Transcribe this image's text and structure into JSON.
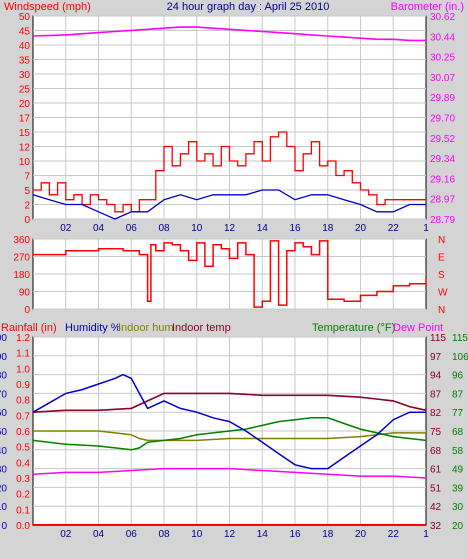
{
  "title": "24 hour graph day : April 25 2010",
  "colors": {
    "background": "#d4d4d4",
    "plot_bg": "#ffffff",
    "grid": "#c8c8c8",
    "windspeed": "#ff0000",
    "gust": "#ff0000",
    "avg_wind": "#0000cc",
    "barometer": "#ff00ff",
    "direction": "#ff0000",
    "humidity": "#0000cc",
    "indoor_hum": "#808000",
    "indoor_temp": "#8b0026",
    "temperature": "#008000",
    "dew_point": "#ff00ff",
    "rainfall": "#ff0000"
  },
  "chart_data": [
    {
      "type": "line",
      "name": "wind-barometer",
      "left_label": "Windspeed (mph)",
      "right_label": "Barometer (in.)",
      "x_ticks": [
        "02",
        "04",
        "06",
        "08",
        "10",
        "12",
        "14",
        "16",
        "18",
        "20",
        "22"
      ],
      "x_range": [
        0,
        24
      ],
      "left_ticks": [
        "0",
        "2",
        "5",
        "7",
        "10",
        "12",
        "15",
        "17",
        "20",
        "25",
        "30",
        "35",
        "40",
        "45",
        "50"
      ],
      "right_ticks": [
        "28.79",
        "28.97",
        "29.16",
        "29.34",
        "29.52",
        "29.70",
        "29.89",
        "30.07",
        "30.25",
        "30.44",
        "30.62"
      ],
      "barometer": {
        "x": [
          0,
          2,
          4,
          6,
          8,
          9,
          10,
          11,
          12,
          13,
          14,
          15,
          16,
          17,
          18,
          19,
          20,
          21,
          22,
          23,
          24
        ],
        "y": [
          30.44,
          30.45,
          30.47,
          30.49,
          30.51,
          30.52,
          30.52,
          30.51,
          30.5,
          30.49,
          30.48,
          30.47,
          30.46,
          30.45,
          30.44,
          30.43,
          30.42,
          30.41,
          30.41,
          30.4,
          30.4
        ]
      },
      "wind_gust": {
        "x": [
          0,
          0.5,
          1,
          1.5,
          2,
          2.5,
          3,
          3.5,
          4,
          4.5,
          5,
          5.5,
          6,
          6.5,
          7,
          7.5,
          8,
          8.5,
          9,
          9.5,
          10,
          10.5,
          11,
          11.5,
          12,
          12.5,
          13,
          13.5,
          14,
          14.5,
          15,
          15.5,
          16,
          16.5,
          17,
          17.5,
          18,
          18.5,
          19,
          19.5,
          20,
          20.5,
          21,
          21.5,
          22,
          22.5,
          23,
          23.5,
          24
        ],
        "y": [
          5,
          6,
          4,
          6,
          3,
          4,
          2,
          4,
          3,
          2,
          1,
          2,
          1,
          3,
          3,
          8,
          12,
          9,
          11,
          13,
          10,
          11,
          9,
          12,
          10,
          9,
          11,
          13,
          10,
          14,
          15,
          12,
          8,
          11,
          13,
          9,
          10,
          7,
          8,
          6,
          5,
          4,
          2,
          3,
          3,
          3,
          3,
          3,
          3
        ]
      },
      "wind_avg": {
        "x": [
          0,
          1,
          2,
          3,
          4,
          5,
          6,
          7,
          8,
          9,
          10,
          11,
          12,
          13,
          14,
          15,
          16,
          17,
          18,
          19,
          20,
          21,
          22,
          23,
          24
        ],
        "y": [
          4,
          3,
          2,
          2,
          1,
          0,
          1,
          1,
          3,
          4,
          3,
          4,
          4,
          4,
          5,
          5,
          3,
          4,
          4,
          3,
          2,
          1,
          1,
          2,
          2
        ]
      }
    },
    {
      "type": "line",
      "name": "wind-direction",
      "left_ticks": [
        "0",
        "90",
        "180",
        "270",
        "360"
      ],
      "right_ticks": [
        "N",
        "W",
        "S",
        "E",
        "N"
      ],
      "x_range": [
        0,
        24
      ],
      "direction": {
        "x": [
          0,
          2,
          4,
          5.5,
          6.5,
          7,
          7.2,
          7.5,
          8,
          8.5,
          9,
          9.5,
          10,
          10.5,
          11,
          11.5,
          12,
          12.5,
          13,
          13.5,
          14,
          14.5,
          15,
          15.5,
          16,
          16.5,
          17,
          17.5,
          18,
          19,
          20,
          21,
          22,
          23,
          24
        ],
        "y": [
          280,
          300,
          310,
          300,
          280,
          40,
          330,
          300,
          340,
          330,
          300,
          250,
          340,
          220,
          330,
          310,
          260,
          340,
          280,
          10,
          40,
          350,
          20,
          300,
          340,
          320,
          280,
          350,
          50,
          40,
          70,
          90,
          120,
          130,
          160
        ]
      }
    },
    {
      "type": "line",
      "name": "temperature-humidity",
      "labels": {
        "rainfall": "Rainfall (in)",
        "humidity": "Humidity %",
        "indoor_hum": "Indoor hum",
        "indoor_temp": "Indoor temp",
        "temperature": "Temperature (°F)",
        "dew_point": "Dew Point"
      },
      "x_ticks": [
        "02",
        "04",
        "06",
        "08",
        "10",
        "12",
        "14",
        "16",
        "18",
        "20",
        "22"
      ],
      "x_range": [
        0,
        24
      ],
      "rain_ticks": [
        "0.0",
        "0.1",
        "0.2",
        "0.3",
        "0.4",
        "0.5",
        "0.6",
        "0.7",
        "0.8",
        "0.9",
        "1.0",
        "1.1",
        "1.2"
      ],
      "humidity_ticks": [
        "0",
        "10",
        "20",
        "30",
        "40",
        "50",
        "60",
        "70",
        "80",
        "90",
        "100"
      ],
      "indoor_temp_ticks": [
        "32",
        "42",
        "51",
        "61",
        "68",
        "75",
        "82",
        "87",
        "94",
        "97",
        "115"
      ],
      "temp_ticks": [
        "20",
        "30",
        "39",
        "49",
        "58",
        "68",
        "77",
        "87",
        "96",
        "106",
        "115"
      ],
      "humidity": {
        "x": [
          0,
          1,
          2,
          3,
          4,
          5,
          5.5,
          6,
          6.5,
          7,
          7.5,
          8,
          9,
          10,
          11,
          12,
          13,
          14,
          15,
          16,
          17,
          18,
          19,
          20,
          21,
          22,
          23,
          24
        ],
        "y": [
          60,
          65,
          70,
          72,
          75,
          78,
          80,
          78,
          70,
          62,
          64,
          66,
          62,
          60,
          57,
          55,
          50,
          44,
          38,
          32,
          30,
          30,
          36,
          42,
          48,
          56,
          60,
          60
        ]
      },
      "indoor_temp": {
        "x": [
          0,
          2,
          4,
          6,
          7,
          8,
          9,
          10,
          12,
          14,
          16,
          18,
          20,
          22,
          23,
          24
        ],
        "y": [
          60,
          61,
          61,
          62,
          66,
          70,
          70,
          70,
          70,
          69,
          69,
          69,
          68,
          66,
          63,
          61
        ]
      },
      "indoor_hum": {
        "x": [
          0,
          2,
          4,
          6,
          6.5,
          7,
          8,
          10,
          12,
          14,
          16,
          18,
          20,
          22,
          24
        ],
        "y": [
          50,
          50,
          50,
          48,
          46,
          45,
          45,
          45,
          46,
          46,
          46,
          46,
          47,
          49,
          49
        ]
      },
      "temperature": {
        "x": [
          0,
          2,
          4,
          5,
          6,
          6.5,
          7,
          8,
          9,
          10,
          11,
          12,
          13,
          14,
          15,
          16,
          17,
          18,
          19,
          20,
          21,
          22,
          23,
          24
        ],
        "y": [
          45,
          43,
          42,
          41,
          40,
          41,
          44,
          45,
          46,
          48,
          49,
          50,
          51,
          53,
          55,
          56,
          57,
          57,
          54,
          51,
          49,
          47,
          46,
          45
        ]
      },
      "dew_point": {
        "x": [
          0,
          2,
          4,
          6,
          8,
          10,
          12,
          14,
          16,
          18,
          20,
          22,
          24
        ],
        "y": [
          27,
          28,
          28,
          29,
          30,
          30,
          30,
          29,
          28,
          27,
          26,
          26,
          25
        ]
      },
      "rainfall": {
        "x": [
          0,
          24
        ],
        "y": [
          0,
          0
        ]
      }
    }
  ]
}
